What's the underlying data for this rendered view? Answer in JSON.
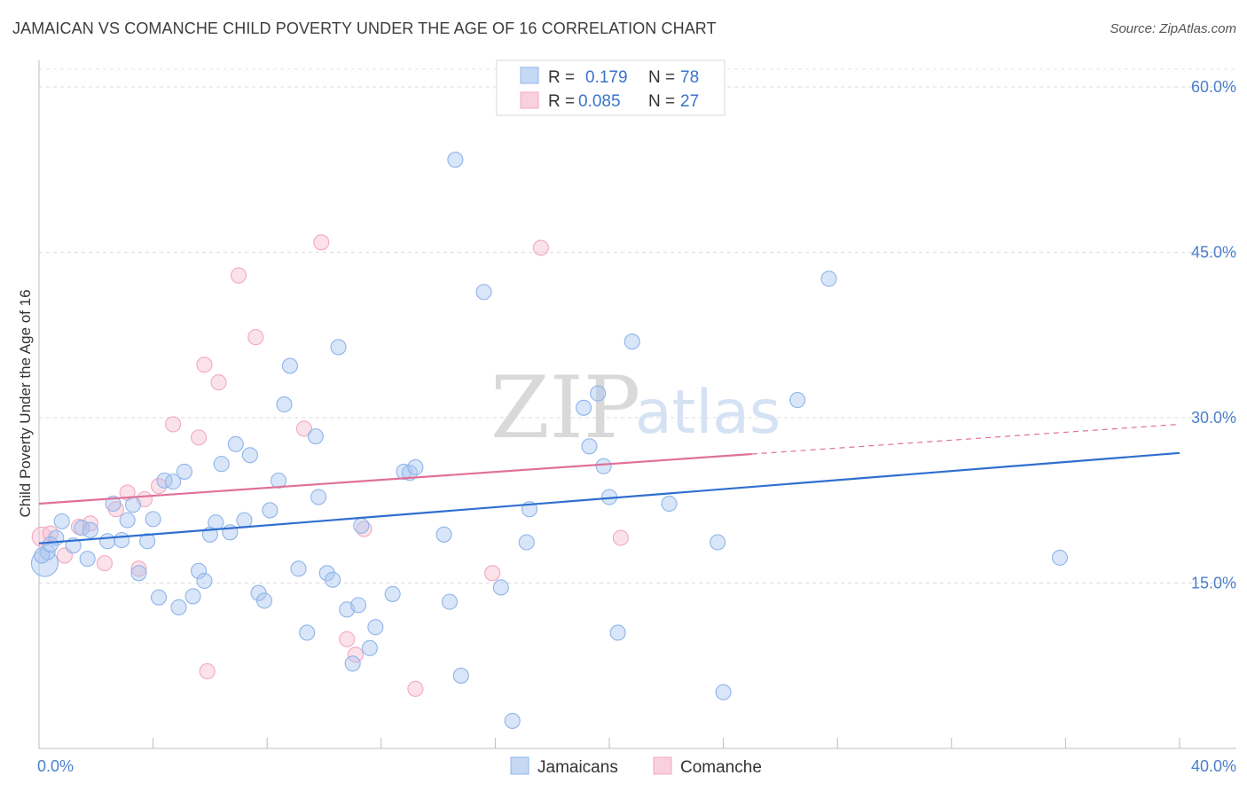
{
  "title": "JAMAICAN VS COMANCHE CHILD POVERTY UNDER THE AGE OF 16 CORRELATION CHART",
  "source": "Source: ZipAtlas.com",
  "watermark": {
    "zip": "ZIP",
    "atlas": "atlas"
  },
  "legend_box": [
    {
      "r_label": "R =",
      "r_value": "0.179",
      "n_label": "N =",
      "n_value": "78"
    },
    {
      "r_label": "R =",
      "r_value": "0.085",
      "n_label": "N =",
      "n_value": "27"
    }
  ],
  "bottom_legend": [
    "Jamaicans",
    "Comanche"
  ],
  "colors": {
    "jamaicans": "#8fb5ea",
    "comanche": "#f2a8c0",
    "jamaicans_line": "#2f6fcf",
    "comanche_line": "#e0709a",
    "tick_text": "#4a7fcc"
  },
  "chart_data": {
    "type": "scatter",
    "title": "JAMAICAN VS COMANCHE CHILD POVERTY UNDER THE AGE OF 16 CORRELATION CHART",
    "xlabel": "",
    "ylabel": "Child Poverty Under the Age of 16",
    "xlim": [
      0,
      40
    ],
    "ylim": [
      0,
      60
    ],
    "x_tick_labels": [
      "0.0%",
      "40.0%"
    ],
    "y_ticks": [
      15,
      30,
      45,
      60
    ],
    "y_tick_labels": [
      "15.0%",
      "30.0%",
      "45.0%",
      "60.0%"
    ],
    "grid": true,
    "legend": "top-center",
    "series": [
      {
        "name": "Jamaicans",
        "r": 0.179,
        "n": 78,
        "trend": {
          "x": [
            0,
            40
          ],
          "y": [
            18.6,
            26.8
          ]
        },
        "points": [
          [
            0.2,
            16.8
          ],
          [
            0.3,
            17.8
          ],
          [
            0.6,
            19.1
          ],
          [
            0.8,
            20.6
          ],
          [
            1.2,
            18.4
          ],
          [
            1.5,
            20.0
          ],
          [
            1.7,
            17.2
          ],
          [
            1.8,
            19.8
          ],
          [
            2.4,
            18.8
          ],
          [
            2.6,
            22.2
          ],
          [
            2.9,
            18.9
          ],
          [
            3.1,
            20.7
          ],
          [
            3.3,
            22.1
          ],
          [
            3.5,
            15.9
          ],
          [
            3.8,
            18.8
          ],
          [
            4.0,
            20.8
          ],
          [
            4.2,
            13.7
          ],
          [
            4.4,
            24.3
          ],
          [
            4.7,
            24.2
          ],
          [
            4.9,
            12.8
          ],
          [
            5.1,
            25.1
          ],
          [
            5.4,
            13.8
          ],
          [
            5.6,
            16.1
          ],
          [
            5.8,
            15.2
          ],
          [
            6.0,
            19.4
          ],
          [
            6.2,
            20.5
          ],
          [
            6.4,
            25.8
          ],
          [
            6.7,
            19.6
          ],
          [
            6.9,
            27.6
          ],
          [
            7.2,
            20.7
          ],
          [
            7.4,
            26.6
          ],
          [
            7.7,
            14.1
          ],
          [
            7.9,
            13.4
          ],
          [
            8.1,
            21.6
          ],
          [
            8.4,
            24.3
          ],
          [
            8.6,
            31.2
          ],
          [
            8.8,
            34.7
          ],
          [
            9.1,
            16.3
          ],
          [
            9.4,
            10.5
          ],
          [
            9.7,
            28.3
          ],
          [
            9.8,
            22.8
          ],
          [
            10.1,
            15.9
          ],
          [
            10.3,
            15.3
          ],
          [
            10.5,
            36.4
          ],
          [
            10.8,
            12.6
          ],
          [
            11.0,
            7.7
          ],
          [
            11.2,
            13.0
          ],
          [
            11.3,
            20.2
          ],
          [
            11.6,
            9.1
          ],
          [
            11.8,
            11.0
          ],
          [
            12.4,
            14.0
          ],
          [
            12.8,
            25.1
          ],
          [
            13.0,
            25.0
          ],
          [
            13.2,
            25.5
          ],
          [
            14.2,
            19.4
          ],
          [
            14.4,
            13.3
          ],
          [
            14.6,
            53.4
          ],
          [
            14.8,
            6.6
          ],
          [
            15.6,
            41.4
          ],
          [
            16.2,
            14.6
          ],
          [
            16.6,
            2.5
          ],
          [
            17.1,
            18.7
          ],
          [
            17.2,
            21.7
          ],
          [
            19.1,
            30.9
          ],
          [
            19.3,
            27.4
          ],
          [
            19.6,
            32.2
          ],
          [
            19.8,
            25.6
          ],
          [
            20.0,
            22.8
          ],
          [
            20.3,
            10.5
          ],
          [
            20.8,
            36.9
          ],
          [
            22.1,
            22.2
          ],
          [
            23.8,
            18.7
          ],
          [
            24.0,
            5.1
          ],
          [
            26.6,
            31.6
          ],
          [
            27.7,
            42.6
          ],
          [
            35.8,
            17.3
          ],
          [
            0.1,
            17.5
          ],
          [
            0.4,
            18.5
          ]
        ]
      },
      {
        "name": "Comanche",
        "r": 0.085,
        "n": 27,
        "trend": {
          "x": [
            0,
            40
          ],
          "y": [
            22.2,
            29.4
          ]
        },
        "trend_solid_until_x": 25.0,
        "points": [
          [
            0.1,
            19.2
          ],
          [
            0.4,
            19.5
          ],
          [
            0.9,
            17.5
          ],
          [
            1.4,
            20.1
          ],
          [
            1.8,
            20.4
          ],
          [
            2.3,
            16.8
          ],
          [
            2.7,
            21.7
          ],
          [
            3.1,
            23.2
          ],
          [
            3.5,
            16.3
          ],
          [
            3.7,
            22.6
          ],
          [
            4.2,
            23.8
          ],
          [
            4.7,
            29.4
          ],
          [
            5.6,
            28.2
          ],
          [
            5.9,
            7.0
          ],
          [
            5.8,
            34.8
          ],
          [
            6.3,
            33.2
          ],
          [
            7.0,
            42.9
          ],
          [
            7.6,
            37.3
          ],
          [
            9.3,
            29.0
          ],
          [
            9.9,
            45.9
          ],
          [
            10.8,
            9.9
          ],
          [
            11.1,
            8.5
          ],
          [
            11.4,
            19.9
          ],
          [
            13.2,
            5.4
          ],
          [
            15.9,
            15.9
          ],
          [
            17.6,
            45.4
          ],
          [
            20.4,
            19.1
          ]
        ]
      }
    ]
  }
}
